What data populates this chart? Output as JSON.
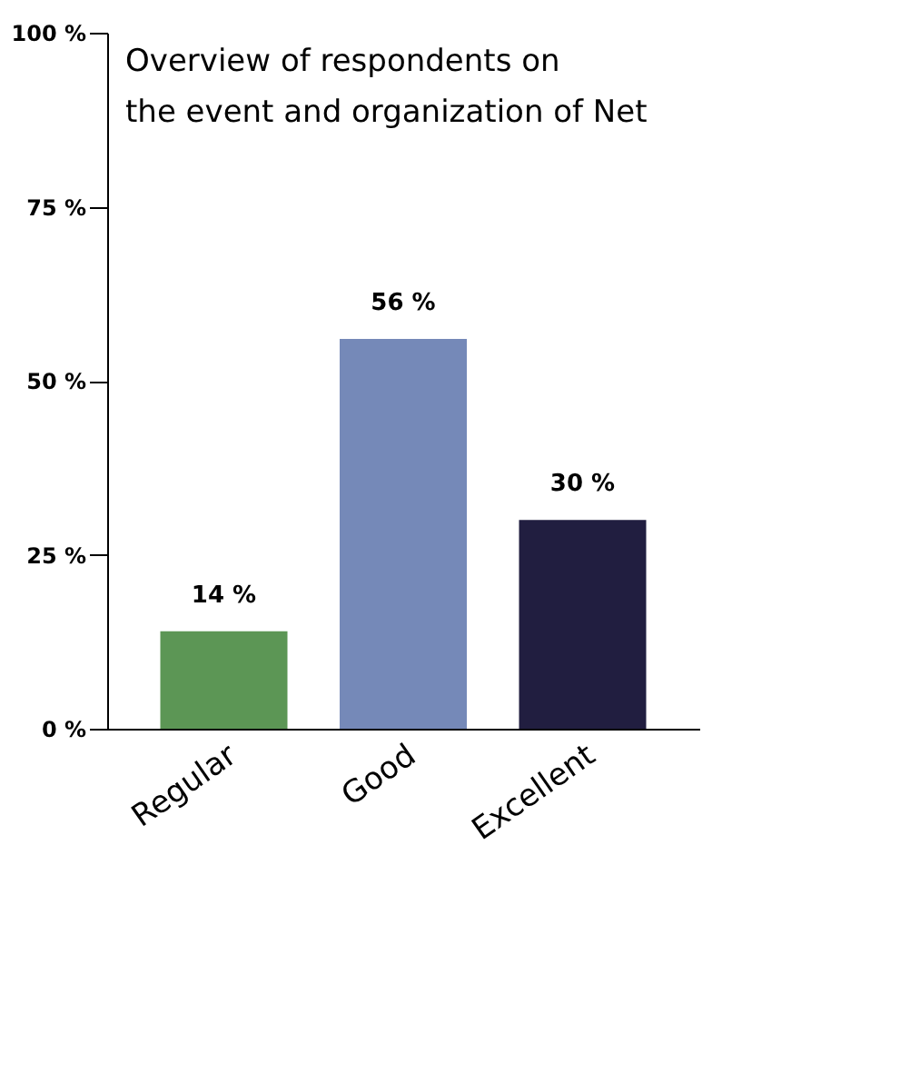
{
  "chart_data": {
    "type": "bar",
    "title": "Overview of respondents on\nthe event and organization of Net",
    "categories": [
      "Regular",
      "Good",
      "Excellent"
    ],
    "values": [
      14,
      56,
      30
    ],
    "colors": [
      "#5c9655",
      "#7589b8",
      "#211e40"
    ],
    "value_labels": [
      "14 %",
      "56 %",
      "30 %"
    ],
    "ylim": [
      0,
      100
    ],
    "yticks": [
      {
        "value": 0,
        "label": "0 %"
      },
      {
        "value": 25,
        "label": "25 %"
      },
      {
        "value": 50,
        "label": "50 %"
      },
      {
        "value": 75,
        "label": "75 %"
      },
      {
        "value": 100,
        "label": "100 %"
      }
    ],
    "grid": false
  }
}
